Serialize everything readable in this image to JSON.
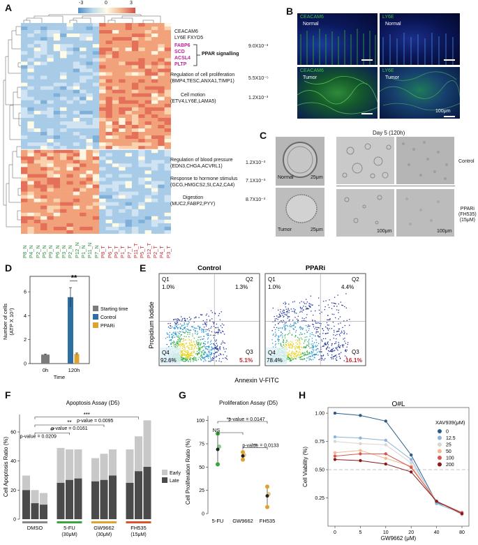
{
  "panelA": {
    "label": "A",
    "colorbar_ticks": [
      "-3",
      "0",
      "3"
    ],
    "samples": [
      "P8_N",
      "P4_N",
      "P2_N",
      "P5_N",
      "P9_N",
      "P6_N",
      "P3_N",
      "P2_N",
      "P12_N",
      "P1_N",
      "P11_N",
      "P7_N",
      "P8_T",
      "P6_T",
      "P9_T",
      "P1_T",
      "P7_T",
      "P11_T",
      "P5_T",
      "P12_T",
      "P2_T",
      "P4_T",
      "P3_T"
    ],
    "genes_top": [
      "CEACAM6",
      "LY6E  FXYD5"
    ],
    "ppar_genes": [
      "FABP6",
      "SCD",
      "ACSL4",
      "PLTP"
    ],
    "ppar_label": "PPAR signalling",
    "ppar_p": "9.0X10⁻³",
    "terms": [
      {
        "title": "Regulation of cell proliferation",
        "genes": "(BMP4,TESC,ANXA1,TIMP1)",
        "p": "5.5X10⁻⁵"
      },
      {
        "title": "Cell motion",
        "genes": "(ETV4,LY6E,LAMA5)",
        "p": "1.2X10⁻³"
      },
      {
        "title": "Regulation of blood pressure",
        "genes": "(EDN3,CHGA,ACVRL1)",
        "p": "1.2X10⁻³"
      },
      {
        "title": "Response to hormone stimulus",
        "genes": "(GCG,HMGCS2,SI,CA2,CA4)",
        "p": "7.1X10⁻³"
      },
      {
        "title": "Digestion",
        "genes": "(MUC2,FABP2,PYY)",
        "p": "8.7X10⁻³"
      }
    ],
    "colors": {
      "high": "#d5504a",
      "low": "#4f8fc9",
      "mid": "#fffce6",
      "normal_label": "#2e8b3e",
      "tumor_label": "#c2272d",
      "ppar": "#c0229a"
    }
  },
  "panelB": {
    "label": "B",
    "tiles": [
      {
        "marker": "CEACAM6",
        "tissue": "Normal"
      },
      {
        "marker": "LY6E",
        "tissue": "Normal"
      },
      {
        "marker": "CEACAM6",
        "tissue": "Tumor"
      },
      {
        "marker": "LY6E",
        "tissue": "Tumor"
      }
    ],
    "scale": "100μm"
  },
  "panelC": {
    "label": "C",
    "day": "Day 5  (120h)",
    "organoids": [
      {
        "name": "Normal",
        "scale": "25μm"
      },
      {
        "name": "Tumor",
        "scale": "25μm"
      }
    ],
    "rows": [
      "Control",
      "PPARi\n(FH535)\n(15μM)"
    ],
    "scale_small": "100μm"
  },
  "panelD": {
    "label": "D",
    "ylabel": "Number of cells\n(ATP X 10⁷)",
    "xlabel": "Time",
    "significance": "**",
    "legend": [
      "Starting time",
      "Control",
      "PPARi"
    ],
    "colors": [
      "#7b7b7b",
      "#2e6fa3",
      "#e0a22e"
    ],
    "chart_data": {
      "type": "bar",
      "categories": [
        "0h",
        "120h"
      ],
      "series": [
        {
          "name": "Starting time",
          "values": [
            0.75,
            null
          ],
          "err": [
            0.05,
            null
          ]
        },
        {
          "name": "Control",
          "values": [
            null,
            5.55
          ],
          "err": [
            null,
            0.8
          ]
        },
        {
          "name": "PPARi",
          "values": [
            null,
            0.8
          ],
          "err": [
            null,
            0.08
          ]
        }
      ],
      "yticks": [
        0,
        2,
        4,
        6
      ],
      "ylim": [
        0,
        7
      ]
    }
  },
  "panelE": {
    "label": "E",
    "ylabel": "Propidium Iodide",
    "xlabel": "Annexin V-FITC",
    "plots": [
      {
        "title": "Control",
        "Q1": "1.0%",
        "Q2": "1.3%",
        "Q3": "5.1%",
        "Q4": "92.6%"
      },
      {
        "title": "PPARi",
        "Q1": "1.0%",
        "Q2": "4.4%",
        "Q3": "16.1%",
        "Q4": "78.4%"
      }
    ],
    "quadrants": [
      "Q1",
      "Q2",
      "Q3",
      "Q4"
    ]
  },
  "panelF": {
    "label": "F",
    "title": "Apoptosis Assay (D5)",
    "ylabel": "Cell Apoptosis Ratio (%)",
    "legend": [
      "Early",
      "Late"
    ],
    "colors": {
      "early": "#c8c8c8",
      "late": "#4a4a4a"
    },
    "sig": [
      {
        "text": "***",
        "p": "p-value = 0.0095"
      },
      {
        "text": "**",
        "p": "p-value = 0.0161"
      },
      {
        "text": "**",
        "p": "p-value = 0.0209"
      }
    ],
    "groups": [
      {
        "name": "DMSO",
        "sub": "",
        "color": "#888888"
      },
      {
        "name": "5-FU",
        "sub": "(30μM)",
        "color": "#3aa63a"
      },
      {
        "name": "GW9662",
        "sub": "(30μM)",
        "color": "#e0a22e"
      },
      {
        "name": "FH535",
        "sub": "(15μM)",
        "color": "#d9532d"
      }
    ],
    "chart_data": {
      "type": "bar",
      "late": [
        20,
        11,
        10,
        25,
        27,
        28,
        26,
        27,
        30,
        25,
        33,
        36
      ],
      "total": [
        30,
        20,
        18,
        49,
        48,
        48,
        42,
        45,
        48,
        48,
        57,
        68
      ],
      "yticks": [
        0,
        20,
        40,
        60
      ],
      "ylim": [
        0,
        72
      ]
    }
  },
  "panelG": {
    "label": "G",
    "title": "Proliferation Assay (D5)",
    "ylabel": "Cell Proliferation Ratio (%)",
    "sig": [
      {
        "text": "**",
        "p": "p-value = 0.0147"
      },
      {
        "text": "NS",
        "p": ""
      },
      {
        "text": "**",
        "p": "p-value = 0.0133"
      }
    ],
    "chart_data": {
      "type": "scatter",
      "categories": [
        "5-FU",
        "GW9662",
        "FH535"
      ],
      "points": [
        [
          86,
          72,
          53
        ],
        [
          66,
          63,
          58
        ],
        [
          29,
          21,
          7
        ]
      ],
      "means": [
        69,
        62,
        19
      ],
      "colors": [
        "#3aa63a",
        "#e0a22e",
        "#e0a22e"
      ],
      "yticks": [
        0,
        25,
        50,
        75,
        100
      ],
      "ylim": [
        0,
        105
      ]
    }
  },
  "panelH": {
    "label": "H",
    "title": "O#L",
    "ylabel": "Cell Viability (%)",
    "xlabel": "GW9662 (μM)",
    "legend_title": "XAV939(μM)",
    "chart_data": {
      "type": "line",
      "x": [
        0,
        5,
        10,
        20,
        40,
        80
      ],
      "series": [
        {
          "name": "0",
          "color": "#2b5c8a",
          "values": [
            1.0,
            0.98,
            0.93,
            0.63,
            0.21,
            0.12
          ]
        },
        {
          "name": "12.5",
          "color": "#8ab4d9",
          "values": [
            0.79,
            0.78,
            0.76,
            0.59,
            0.2,
            0.11
          ]
        },
        {
          "name": "25",
          "color": "#d6d6d6",
          "values": [
            0.75,
            0.73,
            0.72,
            0.56,
            0.22,
            0.1
          ]
        },
        {
          "name": "50",
          "color": "#f2b98c",
          "values": [
            0.65,
            0.67,
            0.6,
            0.53,
            0.22,
            0.11
          ]
        },
        {
          "name": "100",
          "color": "#d9534f",
          "values": [
            0.62,
            0.64,
            0.64,
            0.52,
            0.22,
            0.12
          ]
        },
        {
          "name": "200",
          "color": "#8a1a1a",
          "values": [
            0.59,
            0.58,
            0.55,
            0.48,
            0.22,
            0.11
          ]
        }
      ],
      "yticks": [
        "0.25",
        "0.50",
        "0.75",
        "1.00"
      ],
      "ylim": [
        0,
        1.05
      ],
      "reference_line": 0.5
    }
  }
}
